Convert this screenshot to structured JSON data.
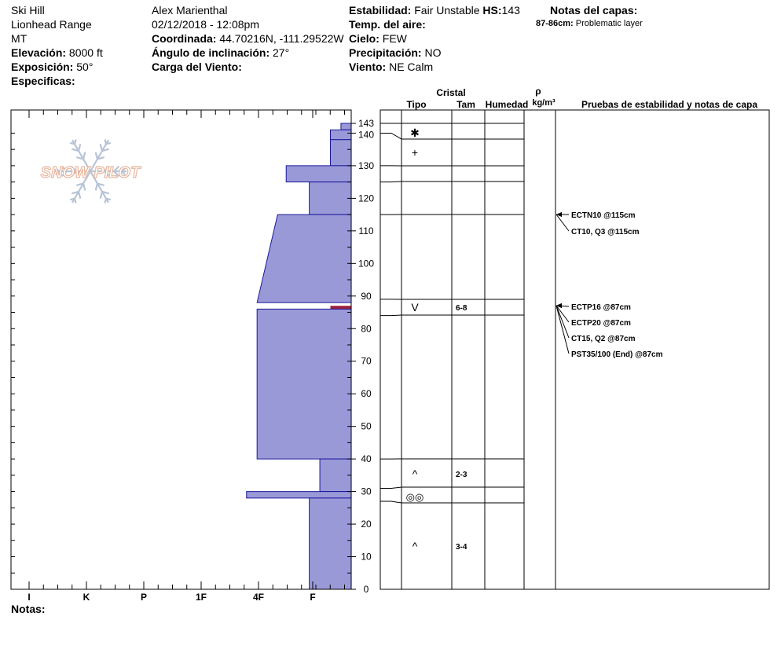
{
  "header": {
    "location": "Ski Hill",
    "range": "Lionhead Range",
    "state": "MT",
    "elevation_label": "Elevación:",
    "elevation_value": "8000 ft",
    "exposure_label": "Exposición:",
    "exposure_value": "50°",
    "specifics_label": "Especificas:",
    "observer": "Alex Marienthal",
    "datetime": "02/12/2018 - 12:08pm",
    "coord_label": "Coordinada:",
    "coord_value": "44.70216N, -111.29522W",
    "slope_label": "Ángulo de inclinación:",
    "slope_value": "27°",
    "wind_load_label": "Carga del Viento:",
    "stability_label": "Estabilidad:",
    "stability_value": "Fair Unstable",
    "hs_label": "HS:",
    "hs_value": "143",
    "air_temp_label": "Temp. del aire:",
    "sky_label": "Cielo:",
    "sky_value": "FEW",
    "precip_label": "Precipitación:",
    "precip_value": "NO",
    "wind_label": "Viento:",
    "wind_value": "NE Calm",
    "layer_notes_label": "Notas del capas:",
    "layer_note_range": "87-86cm:",
    "layer_note_text": "Problematic layer"
  },
  "logo_text": "SNOW PILOT",
  "notes_label": "Notas:",
  "columns": {
    "crystal": "Cristal",
    "type": "Tipo",
    "size": "Tam",
    "moisture": "Humedad",
    "density_symbol": "ρ",
    "density_unit": "kg/m³",
    "tests": "Pruebas de estabilidad y notas de capa"
  },
  "chart_data": {
    "type": "bar",
    "orientation": "horizontal",
    "description_scale": "hardness profile",
    "y_axis": {
      "min": 0,
      "max": 143,
      "ticks": [
        0,
        10,
        20,
        30,
        40,
        50,
        60,
        70,
        80,
        90,
        100,
        110,
        120,
        130,
        140,
        143
      ]
    },
    "x_axis": {
      "categories": [
        "I",
        "K",
        "P",
        "1F",
        "4F",
        "F"
      ]
    },
    "hardness_layers": [
      {
        "bottom": 141,
        "top": 143,
        "hardness_top": 0.36,
        "hardness_bottom": 0.36
      },
      {
        "bottom": 138,
        "top": 141,
        "hardness_top": 0.73,
        "hardness_bottom": 0.73
      },
      {
        "bottom": 130,
        "top": 138,
        "hardness_top": 0.73,
        "hardness_bottom": 0.73
      },
      {
        "bottom": 125,
        "top": 130,
        "hardness_top": 2.28,
        "hardness_bottom": 2.28
      },
      {
        "bottom": 115,
        "top": 125,
        "hardness_top": 1.47,
        "hardness_bottom": 1.47
      },
      {
        "bottom": 88,
        "top": 115,
        "hardness_top": 2.58,
        "hardness_bottom": 3.3
      },
      {
        "bottom": 86,
        "top": 87,
        "hardness_top": 0.73,
        "hardness_bottom": 0.73,
        "problematic": true
      },
      {
        "bottom": 40,
        "top": 86,
        "hardness_top": 3.3,
        "hardness_bottom": 3.3
      },
      {
        "bottom": 30,
        "top": 40,
        "hardness_top": 1.1,
        "hardness_bottom": 1.1
      },
      {
        "bottom": 28,
        "top": 30,
        "hardness_top": 3.67,
        "hardness_bottom": 3.67
      },
      {
        "bottom": 0,
        "top": 28,
        "hardness_top": 1.47,
        "hardness_bottom": 1.47
      }
    ],
    "layer_boundaries": [
      143,
      140,
      138,
      130,
      125,
      115,
      89,
      84,
      40,
      31,
      27,
      0
    ],
    "crystals": [
      {
        "height": 140,
        "symbol": "✱",
        "size": ""
      },
      {
        "height": 134,
        "symbol": "+",
        "size": ""
      },
      {
        "height": 86,
        "symbol": "V",
        "size": "6-8"
      },
      {
        "height": 35,
        "symbol": "^",
        "size": "2-3"
      },
      {
        "height": 29,
        "symbol": "◎◎",
        "size": ""
      },
      {
        "height": 13,
        "symbol": "^",
        "size": "3-4"
      }
    ],
    "tests": [
      {
        "text": "ECTN10 @115cm",
        "height": 115
      },
      {
        "text": "CT10, Q3 @115cm",
        "height": 115
      },
      {
        "text": "ECTP16 @87cm",
        "height": 87
      },
      {
        "text": "ECTP20 @87cm",
        "height": 87
      },
      {
        "text": "CT15, Q2 @87cm",
        "height": 87
      },
      {
        "text": "PST35/100 (End) @87cm",
        "height": 87
      }
    ]
  },
  "colors": {
    "layer_fill": "#9a99d8",
    "layer_stroke": "#1a1a9a",
    "problem_layer": "#a0203a",
    "logo_orange": "#e8b8a0",
    "logo_blue": "#b8c4d6"
  }
}
